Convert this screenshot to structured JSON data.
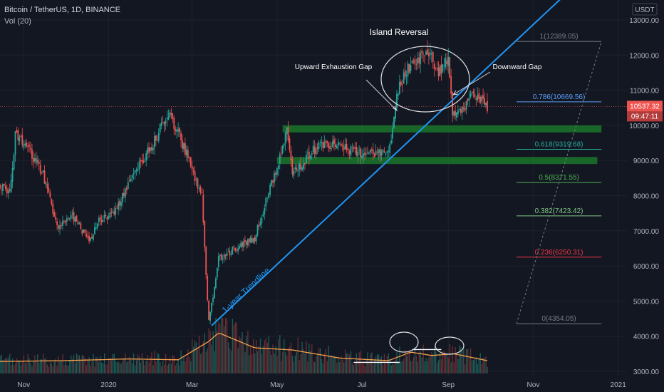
{
  "header": {
    "symbol": "Bitcoin / TetherUS, 1D, BINANCE",
    "volume_label": "Vol (20)"
  },
  "chart_data": {
    "type": "candlestick",
    "currency": "USDT",
    "ylim": [
      3000,
      13500
    ],
    "y_ticks": [
      3000,
      4000,
      5000,
      6000,
      7000,
      8000,
      9000,
      10000,
      11000,
      12000,
      13000
    ],
    "y_tick_labels": [
      "3000.00",
      "4000.00",
      "5000.00",
      "6000.00",
      "7000.00",
      "8000.00",
      "9000.00",
      "10000.00",
      "11000.00",
      "12000.00",
      "13000.00"
    ],
    "x_range": [
      "2019-10-15",
      "2021-01-15"
    ],
    "x_ticks": [
      {
        "date": "2019-11-01",
        "label": "Nov"
      },
      {
        "date": "2020-01-01",
        "label": "2020"
      },
      {
        "date": "2020-03-01",
        "label": "Mar"
      },
      {
        "date": "2020-05-01",
        "label": "May"
      },
      {
        "date": "2020-07-01",
        "label": "Jul"
      },
      {
        "date": "2020-09-01",
        "label": "Sep"
      },
      {
        "date": "2020-11-01",
        "label": "Nov"
      },
      {
        "date": "2021-01-01",
        "label": "2021"
      }
    ],
    "price_path": [
      [
        "2019-10-15",
        8300
      ],
      [
        "2019-10-22",
        8100
      ],
      [
        "2019-10-26",
        9700
      ],
      [
        "2019-11-05",
        9300
      ],
      [
        "2019-11-15",
        8600
      ],
      [
        "2019-11-25",
        7100
      ],
      [
        "2019-12-05",
        7500
      ],
      [
        "2019-12-18",
        6700
      ],
      [
        "2019-12-25",
        7300
      ],
      [
        "2020-01-05",
        7500
      ],
      [
        "2020-01-20",
        8700
      ],
      [
        "2020-02-01",
        9400
      ],
      [
        "2020-02-13",
        10400
      ],
      [
        "2020-02-25",
        9300
      ],
      [
        "2020-03-08",
        8000
      ],
      [
        "2020-03-12",
        5000
      ],
      [
        "2020-03-13",
        4400
      ],
      [
        "2020-03-20",
        6200
      ],
      [
        "2020-04-01",
        6500
      ],
      [
        "2020-04-15",
        6800
      ],
      [
        "2020-04-30",
        8700
      ],
      [
        "2020-05-08",
        9800
      ],
      [
        "2020-05-12",
        8600
      ],
      [
        "2020-06-01",
        9500
      ],
      [
        "2020-06-15",
        9400
      ],
      [
        "2020-07-01",
        9200
      ],
      [
        "2020-07-20",
        9200
      ],
      [
        "2020-07-27",
        11000
      ],
      [
        "2020-08-02",
        11600
      ],
      [
        "2020-08-17",
        12100
      ],
      [
        "2020-08-25",
        11500
      ],
      [
        "2020-09-01",
        11900
      ],
      [
        "2020-09-04",
        10400
      ],
      [
        "2020-09-10",
        10300
      ],
      [
        "2020-09-18",
        11000
      ],
      [
        "2020-09-25",
        10700
      ],
      [
        "2020-09-29",
        10537
      ]
    ],
    "volume_ma_path": [
      [
        "2019-10-15",
        0.28
      ],
      [
        "2019-12-01",
        0.3
      ],
      [
        "2020-01-15",
        0.34
      ],
      [
        "2020-02-20",
        0.32
      ],
      [
        "2020-03-13",
        0.75
      ],
      [
        "2020-03-20",
        0.95
      ],
      [
        "2020-04-15",
        0.6
      ],
      [
        "2020-05-12",
        0.55
      ],
      [
        "2020-06-15",
        0.36
      ],
      [
        "2020-07-20",
        0.3
      ],
      [
        "2020-08-05",
        0.5
      ],
      [
        "2020-08-20",
        0.42
      ],
      [
        "2020-09-05",
        0.46
      ],
      [
        "2020-09-29",
        0.3
      ]
    ],
    "fibonacci": {
      "levels": [
        {
          "ratio": "1",
          "price": 12389.05,
          "label": "1(12389.05)",
          "color": "#787b86"
        },
        {
          "ratio": "0.786",
          "price": 10669.56,
          "label": "0.786(10669.56)",
          "color": "#5b9cf6"
        },
        {
          "ratio": "0.618",
          "price": 9319.68,
          "label": "0.618(9319.68)",
          "color": "#26a69a"
        },
        {
          "ratio": "0.5",
          "price": 8371.55,
          "label": "0.5(8371.55)",
          "color": "#4caf50"
        },
        {
          "ratio": "0.382",
          "price": 7423.42,
          "label": "0.382(7423.42)",
          "color": "#81c784"
        },
        {
          "ratio": "0.236",
          "price": 6250.31,
          "label": "0.236(6250.31)",
          "color": "#f23645"
        },
        {
          "ratio": "0",
          "price": 4354.05,
          "label": "0(4354.05)",
          "color": "#787b86"
        }
      ],
      "from_date": "2020-10-20",
      "to_date": "2020-12-20"
    },
    "support_zones": [
      {
        "from_date": "2020-05-05",
        "to_date": "2020-12-20",
        "low": 9800,
        "high": 10000
      },
      {
        "from_date": "2020-05-01",
        "to_date": "2020-12-17",
        "low": 8900,
        "high": 9100
      }
    ],
    "trendline": {
      "label": "1-year Trendline",
      "from": [
        "2020-03-15",
        4300
      ],
      "to": [
        "2020-12-15",
        14500
      ]
    },
    "annotations": [
      {
        "text": "Island Reversal",
        "date": "2020-08-20",
        "price": 13150
      },
      {
        "text": "Upward Exhaustion Gap",
        "date": "2020-07-06",
        "price": 11650
      },
      {
        "text": "Downward Gap",
        "date": "2020-10-06",
        "price": 11650
      }
    ],
    "current_price": {
      "value": 10537.32,
      "label": "10537.32",
      "countdown": "09:47:11"
    },
    "volume_highlights": [
      {
        "from_date": "2020-06-25",
        "to_date": "2020-07-28",
        "level": 0.26
      },
      {
        "from_date": "2020-08-06",
        "to_date": "2020-08-27",
        "level": 0.56
      }
    ],
    "colors": {
      "background": "#131722",
      "up": "#26a69a",
      "down": "#ef5350",
      "trendline": "#2196f3",
      "support_zone": "#1b7a2c",
      "volume_ma": "#f5a04a",
      "current_price_tag": "#ef5350"
    }
  }
}
